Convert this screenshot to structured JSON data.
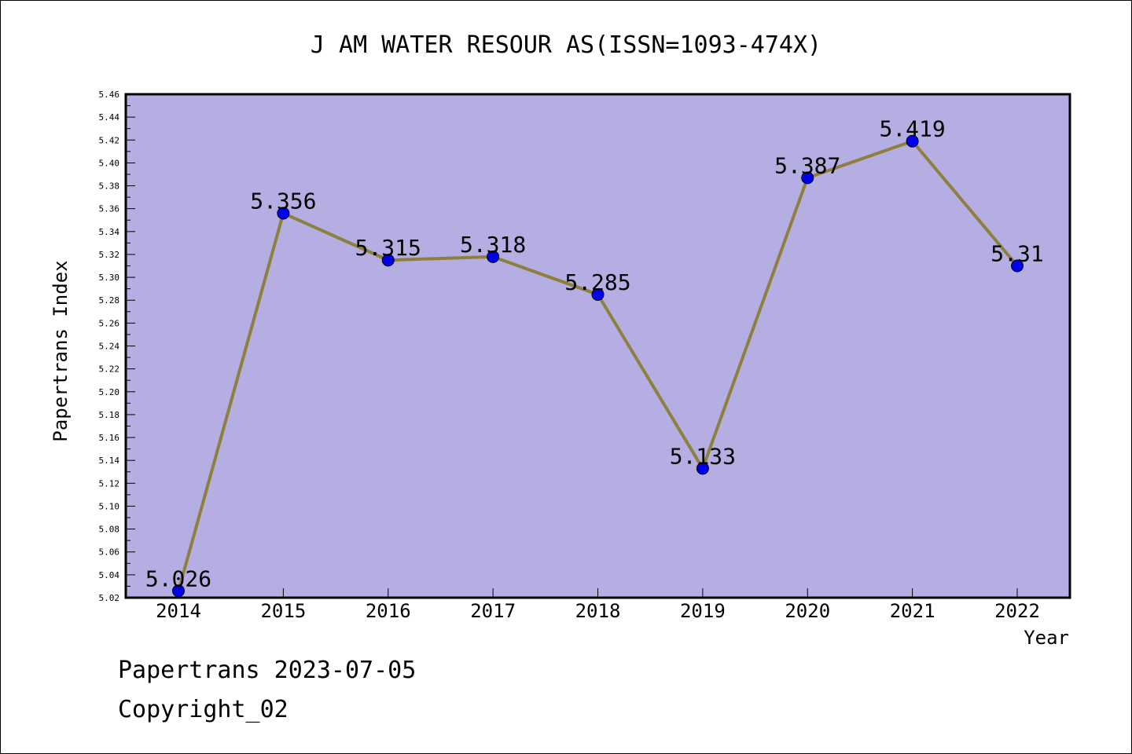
{
  "chart_data": {
    "type": "line",
    "title": "J AM WATER RESOUR AS(ISSN=1093-474X)",
    "xlabel": "Year",
    "ylabel": "Papertrans Index",
    "categories": [
      "2014",
      "2015",
      "2016",
      "2017",
      "2018",
      "2019",
      "2020",
      "2021",
      "2022"
    ],
    "values": [
      5.026,
      5.356,
      5.315,
      5.318,
      5.285,
      5.133,
      5.387,
      5.419,
      5.31
    ],
    "data_labels": [
      "5.026",
      "5.356",
      "5.315",
      "5.318",
      "5.285",
      "5.133",
      "5.387",
      "5.419",
      "5.31"
    ],
    "ylim": [
      5.02,
      5.46
    ],
    "yticks": [
      "5.02",
      "5.04",
      "5.06",
      "5.08",
      "5.10",
      "5.12",
      "5.14",
      "5.16",
      "5.18",
      "5.20",
      "5.22",
      "5.24",
      "5.26",
      "5.28",
      "5.30",
      "5.32",
      "5.34",
      "5.36",
      "5.38",
      "5.40",
      "5.42",
      "5.44",
      "5.46"
    ],
    "grid": false,
    "colors": {
      "plot_background": "#b5aee2",
      "line": "#8e7f3e",
      "marker": "#0000ee"
    }
  },
  "footer": {
    "line1": "Papertrans 2023-07-05",
    "line2": "Copyright_02"
  }
}
